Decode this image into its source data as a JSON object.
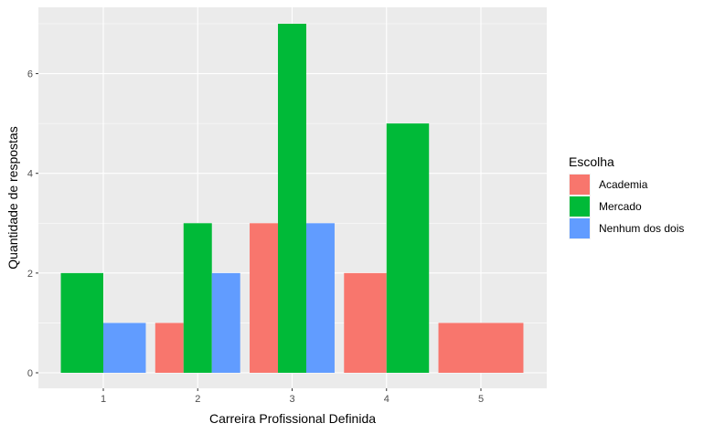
{
  "chart_data": {
    "type": "bar",
    "layout": "dodge-preserve-total",
    "xlabel": "Carreira Profissional Definida",
    "ylabel": "Quantidade de respostas",
    "categories": [
      "1",
      "2",
      "3",
      "4",
      "5"
    ],
    "ylim": [
      0,
      7.35
    ],
    "yticks": [
      0,
      2,
      4,
      6
    ],
    "grid": true,
    "legend": {
      "title": "Escolha",
      "placement": "right"
    },
    "series": [
      {
        "name": "Academia",
        "color": "#F8766D",
        "values": [
          null,
          1,
          3,
          2,
          1
        ]
      },
      {
        "name": "Mercado",
        "color": "#00BA38",
        "values": [
          2,
          3,
          7,
          5,
          null
        ]
      },
      {
        "name": "Nenhum dos dois",
        "color": "#619CFF",
        "values": [
          1,
          2,
          3,
          null,
          null
        ]
      }
    ]
  }
}
